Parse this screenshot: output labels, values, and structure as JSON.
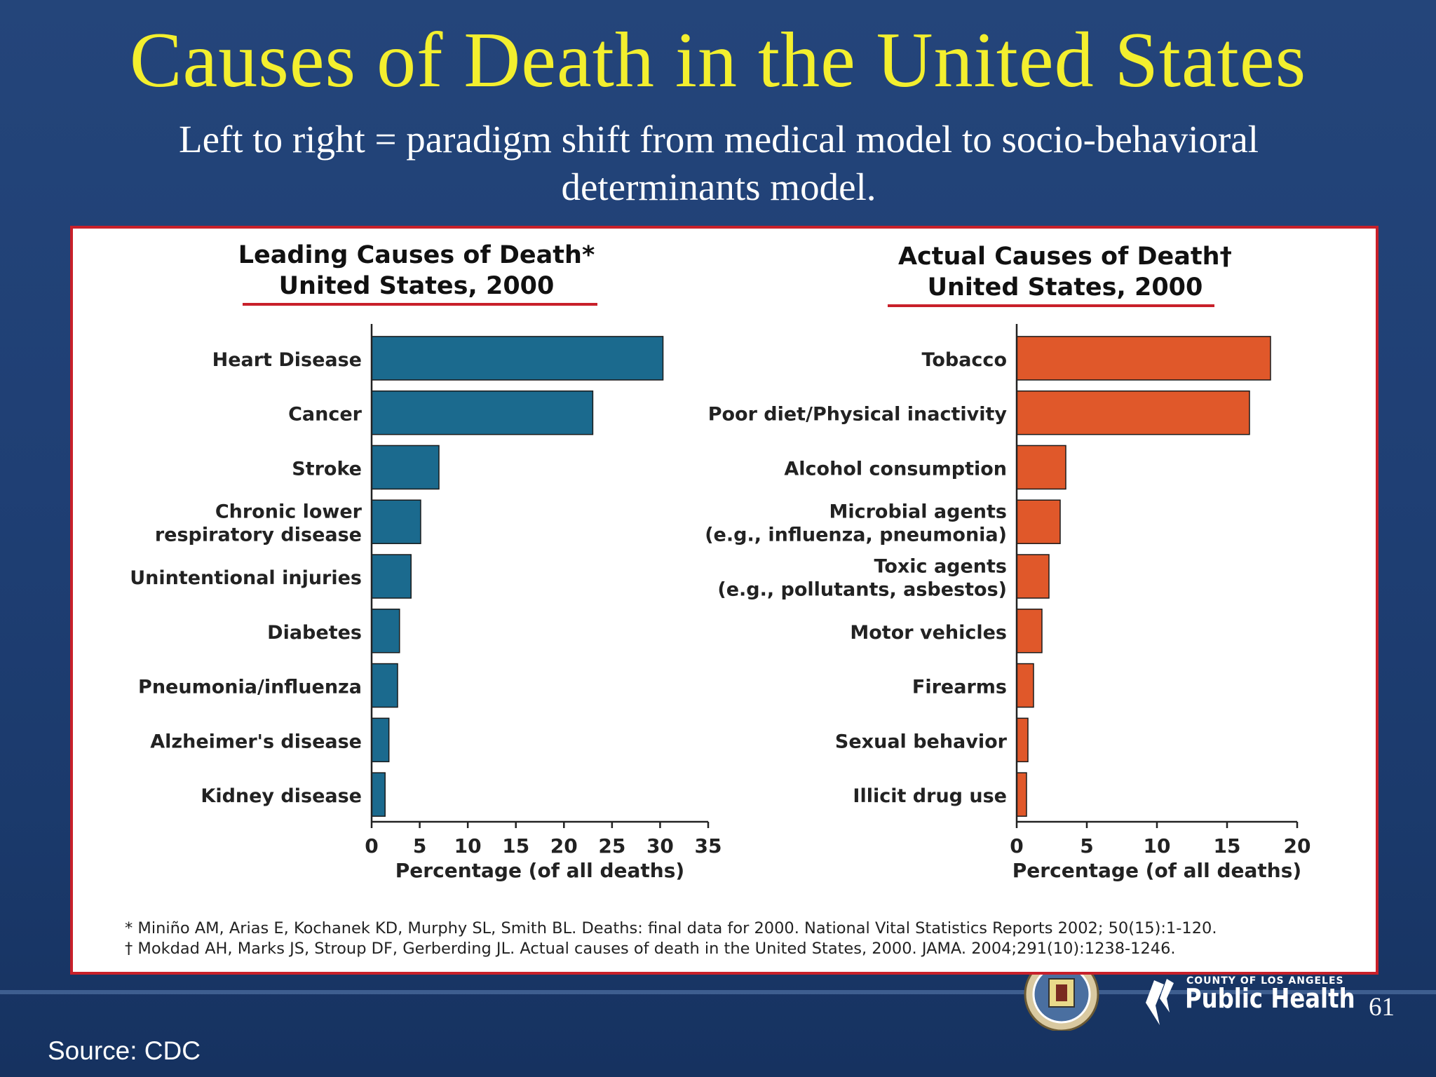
{
  "slide": {
    "title": "Causes of Death in the United States",
    "subtitle_line1": "Left to right = paradigm shift from medical model to socio-behavioral",
    "subtitle_line2": "determinants model.",
    "source": "Source:  CDC",
    "page_number": "61",
    "logo_county": "COUNTY OF LOS ANGELES",
    "logo_name": "Public Health"
  },
  "colors": {
    "left_bars": "#1b6a8e",
    "right_bars": "#e0582a",
    "title": "#f3ef2e",
    "rule": "#c8202a"
  },
  "chart_data": [
    {
      "type": "bar",
      "orientation": "horizontal",
      "title_line1": "Leading Causes of Death*",
      "title_line2": "United States, 2000",
      "xlabel": "Percentage (of all deaths)",
      "xlim": [
        0,
        35
      ],
      "xticks": [
        0,
        5,
        10,
        15,
        20,
        25,
        30,
        35
      ],
      "categories": [
        [
          "Heart Disease"
        ],
        [
          "Cancer"
        ],
        [
          "Stroke"
        ],
        [
          "Chronic lower",
          "respiratory disease"
        ],
        [
          "Unintentional injuries"
        ],
        [
          "Diabetes"
        ],
        [
          "Pneumonia/influenza"
        ],
        [
          "Alzheimer's disease"
        ],
        [
          "Kidney disease"
        ]
      ],
      "values": [
        30.3,
        23.0,
        7.0,
        5.1,
        4.1,
        2.9,
        2.7,
        1.8,
        1.4
      ]
    },
    {
      "type": "bar",
      "orientation": "horizontal",
      "title_line1": "Actual Causes of Death†",
      "title_line2": "United States, 2000",
      "xlabel": "Percentage (of all deaths)",
      "xlim": [
        0,
        20
      ],
      "xticks": [
        0,
        5,
        10,
        15,
        20
      ],
      "categories": [
        [
          "Tobacco"
        ],
        [
          "Poor diet/Physical inactivity"
        ],
        [
          "Alcohol consumption"
        ],
        [
          "Microbial agents",
          "(e.g., influenza, pneumonia)"
        ],
        [
          "Toxic agents",
          "(e.g., pollutants, asbestos)"
        ],
        [
          "Motor vehicles"
        ],
        [
          "Firearms"
        ],
        [
          "Sexual behavior"
        ],
        [
          "Illicit drug use"
        ]
      ],
      "values": [
        18.1,
        16.6,
        3.5,
        3.1,
        2.3,
        1.8,
        1.2,
        0.8,
        0.7
      ]
    }
  ],
  "footnotes": [
    "* Miniño AM, Arias E, Kochanek KD, Murphy SL, Smith BL. Deaths: final data for 2000. National Vital Statistics Reports 2002; 50(15):1-120.",
    "† Mokdad AH, Marks JS, Stroup DF, Gerberding JL.  Actual causes of death in the United States, 2000.  JAMA. 2004;291(10):1238-1246."
  ]
}
